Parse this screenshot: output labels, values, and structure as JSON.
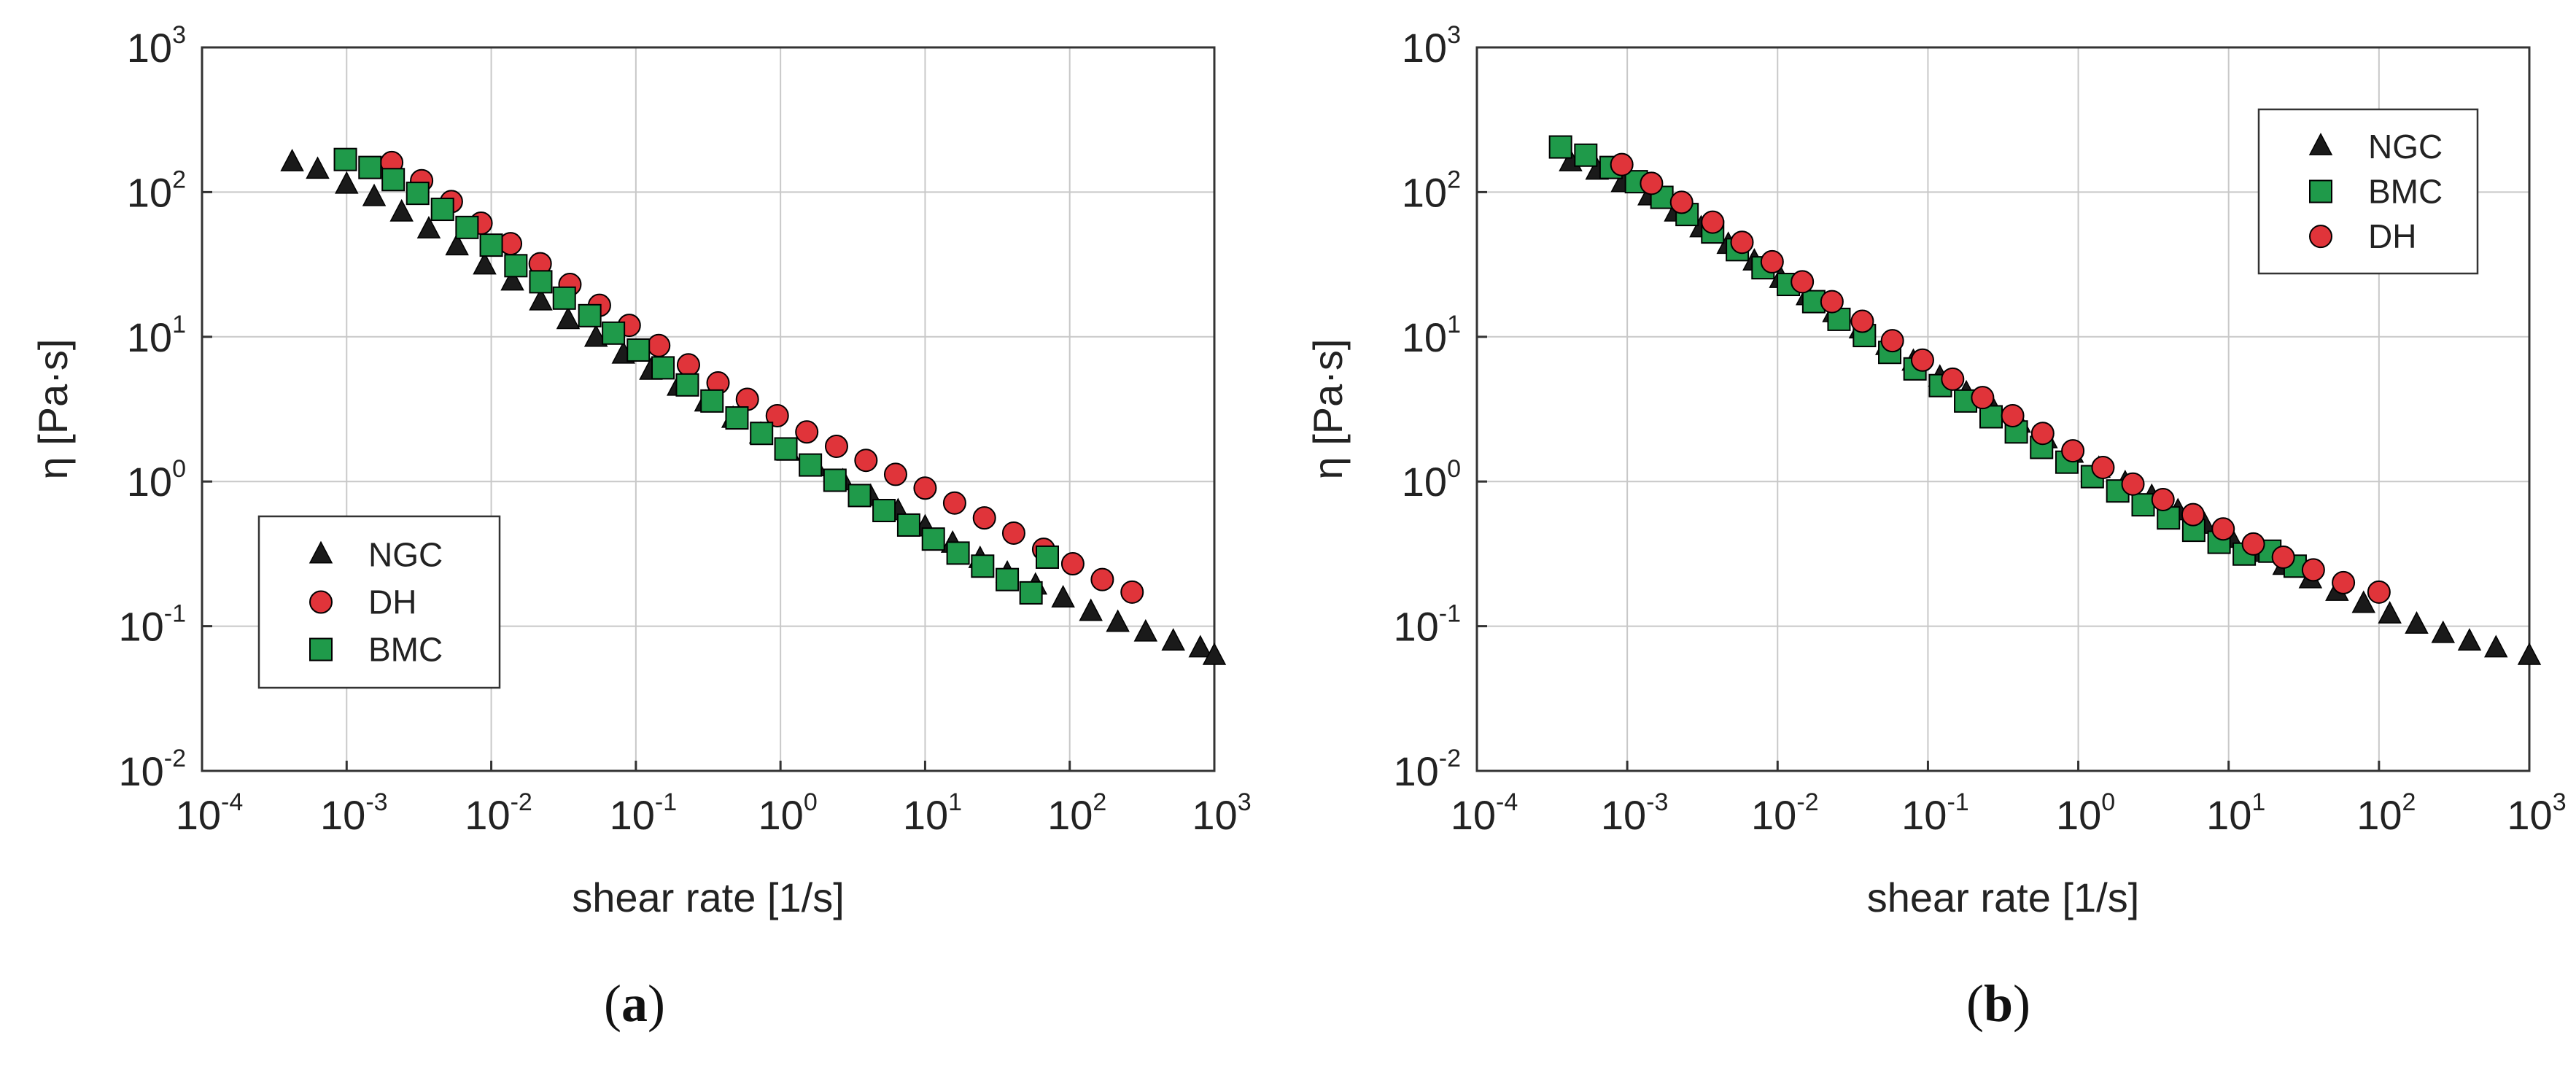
{
  "chart_data": [
    {
      "type": "scatter",
      "panel_label": "a",
      "xlabel": "shear rate [1/s]",
      "ylabel": "η [Pa·s]",
      "xscale": "log",
      "yscale": "log",
      "xlim": [
        0.0001,
        1000
      ],
      "ylim": [
        0.01,
        1000
      ],
      "xticks": [
        {
          "base": "10",
          "exp": "-4"
        },
        {
          "base": "10",
          "exp": "-3"
        },
        {
          "base": "10",
          "exp": "-2"
        },
        {
          "base": "10",
          "exp": "-1"
        },
        {
          "base": "10",
          "exp": "0"
        },
        {
          "base": "10",
          "exp": "1"
        },
        {
          "base": "10",
          "exp": "2"
        },
        {
          "base": "10",
          "exp": "3"
        }
      ],
      "yticks": [
        {
          "base": "10",
          "exp": "-2"
        },
        {
          "base": "10",
          "exp": "-1"
        },
        {
          "base": "10",
          "exp": "0"
        },
        {
          "base": "10",
          "exp": "1"
        },
        {
          "base": "10",
          "exp": "2"
        },
        {
          "base": "10",
          "exp": "3"
        }
      ],
      "grid": true,
      "legend_position": "middle-left",
      "series": [
        {
          "name": "NGC",
          "marker": "triangle",
          "color": "#1a1a1a",
          "x": [
            0.00042,
            0.00063,
            0.001,
            0.00155,
            0.0024,
            0.0037,
            0.0058,
            0.009,
            0.014,
            0.022,
            0.034,
            0.053,
            0.082,
            0.127,
            0.197,
            0.305,
            0.47,
            0.73,
            1.13,
            1.75,
            2.7,
            4.2,
            6.5,
            10,
            15.5,
            24,
            37,
            58,
            90,
            140,
            215,
            335,
            520,
            800,
            1000
          ],
          "y": [
            160,
            142,
            112,
            92,
            72,
            55,
            42,
            31,
            24,
            17.5,
            13,
            9.8,
            7.5,
            5.8,
            4.5,
            3.5,
            2.7,
            2.1,
            1.6,
            1.25,
            1.0,
            0.78,
            0.62,
            0.48,
            0.37,
            0.29,
            0.23,
            0.19,
            0.155,
            0.125,
            0.105,
            0.09,
            0.078,
            0.07,
            0.062
          ]
        },
        {
          "name": "DH",
          "marker": "circle",
          "color": "#e0343a",
          "x": [
            0.00205,
            0.0033,
            0.0053,
            0.0085,
            0.0136,
            0.0218,
            0.035,
            0.056,
            0.09,
            0.144,
            0.231,
            0.37,
            0.59,
            0.95,
            1.52,
            2.44,
            3.9,
            6.25,
            10,
            16,
            25.7,
            41,
            66,
            105,
            168,
            270
          ],
          "y": [
            160,
            120,
            86,
            61,
            44,
            32,
            23,
            16.5,
            12,
            8.7,
            6.4,
            4.8,
            3.7,
            2.85,
            2.2,
            1.75,
            1.4,
            1.12,
            0.9,
            0.71,
            0.56,
            0.44,
            0.34,
            0.27,
            0.21,
            0.172
          ]
        },
        {
          "name": "BMC",
          "marker": "square",
          "color": "#1f9a4a",
          "x": [
            0.00098,
            0.00145,
            0.0021,
            0.0031,
            0.0046,
            0.0068,
            0.01,
            0.0148,
            0.022,
            0.032,
            0.048,
            0.07,
            0.104,
            0.154,
            0.227,
            0.336,
            0.5,
            0.74,
            1.09,
            1.61,
            2.38,
            3.52,
            5.2,
            7.7,
            11.4,
            16.9,
            25,
            37,
            54,
            70
          ],
          "y": [
            168,
            148,
            122,
            98,
            76,
            57,
            43,
            31,
            24,
            18.5,
            14,
            10.6,
            8.1,
            6.1,
            4.65,
            3.6,
            2.75,
            2.15,
            1.68,
            1.3,
            1.02,
            0.8,
            0.63,
            0.5,
            0.4,
            0.32,
            0.26,
            0.21,
            0.17,
            0.3
          ]
        }
      ]
    },
    {
      "type": "scatter",
      "panel_label": "b",
      "xlabel": "shear rate [1/s]",
      "ylabel": "η [Pa·s]",
      "xscale": "log",
      "yscale": "log",
      "xlim": [
        0.0001,
        1000
      ],
      "ylim": [
        0.01,
        1000
      ],
      "xticks": [
        {
          "base": "10",
          "exp": "-4"
        },
        {
          "base": "10",
          "exp": "-3"
        },
        {
          "base": "10",
          "exp": "-2"
        },
        {
          "base": "10",
          "exp": "-1"
        },
        {
          "base": "10",
          "exp": "0"
        },
        {
          "base": "10",
          "exp": "1"
        },
        {
          "base": "10",
          "exp": "2"
        },
        {
          "base": "10",
          "exp": "3"
        }
      ],
      "yticks": [
        {
          "base": "10",
          "exp": "-2"
        },
        {
          "base": "10",
          "exp": "-1"
        },
        {
          "base": "10",
          "exp": "0"
        },
        {
          "base": "10",
          "exp": "1"
        },
        {
          "base": "10",
          "exp": "2"
        },
        {
          "base": "10",
          "exp": "3"
        }
      ],
      "grid": true,
      "legend_position": "top-right",
      "series": [
        {
          "name": "NGC",
          "marker": "triangle",
          "color": "#1a1a1a",
          "x": [
            0.00042,
            0.00063,
            0.00093,
            0.0014,
            0.0021,
            0.0031,
            0.0047,
            0.007,
            0.0105,
            0.0158,
            0.0237,
            0.0356,
            0.0534,
            0.08,
            0.12,
            0.18,
            0.27,
            0.405,
            0.61,
            0.91,
            1.37,
            2.05,
            3.08,
            4.6,
            6.9,
            10.4,
            15.6,
            23.4,
            35,
            52.6,
            79,
            118,
            178,
            267,
            400,
            600,
            1000
          ],
          "y": [
            160,
            140,
            115,
            93,
            72,
            56,
            43,
            33,
            25,
            19,
            14.5,
            11.2,
            8.6,
            6.7,
            5.2,
            4.05,
            3.15,
            2.5,
            1.95,
            1.55,
            1.22,
            0.97,
            0.78,
            0.62,
            0.5,
            0.4,
            0.32,
            0.26,
            0.21,
            0.172,
            0.142,
            0.12,
            0.102,
            0.088,
            0.078,
            0.07,
            0.062
          ]
        },
        {
          "name": "BMC",
          "marker": "square",
          "color": "#1f9a4a",
          "x": [
            0.00036,
            0.00053,
            0.00078,
            0.00115,
            0.0017,
            0.0025,
            0.0037,
            0.0054,
            0.008,
            0.0118,
            0.0174,
            0.0256,
            0.0378,
            0.0557,
            0.082,
            0.121,
            0.178,
            0.263,
            0.387,
            0.57,
            0.84,
            1.24,
            1.83,
            2.7,
            3.98,
            5.86,
            8.64,
            12.7,
            18.8,
            27.7
          ],
          "y": [
            205,
            180,
            148,
            118,
            92,
            70,
            53,
            40,
            30,
            23,
            17.5,
            13.2,
            10.2,
            7.8,
            6.0,
            4.6,
            3.6,
            2.8,
            2.2,
            1.72,
            1.36,
            1.08,
            0.86,
            0.69,
            0.56,
            0.46,
            0.38,
            0.315,
            0.33,
            0.26
          ]
        },
        {
          "name": "DH",
          "marker": "circle",
          "color": "#e0343a",
          "x": [
            0.00092,
            0.00145,
            0.0023,
            0.0037,
            0.0058,
            0.0092,
            0.0146,
            0.023,
            0.0366,
            0.058,
            0.092,
            0.146,
            0.231,
            0.366,
            0.58,
            0.92,
            1.46,
            2.31,
            3.66,
            5.8,
            9.2,
            14.6,
            23.1,
            36.6,
            58,
            100
          ],
          "y": [
            155,
            115,
            85,
            62,
            45,
            33,
            24,
            17.5,
            12.8,
            9.4,
            6.9,
            5.1,
            3.8,
            2.85,
            2.15,
            1.63,
            1.25,
            0.96,
            0.75,
            0.59,
            0.47,
            0.37,
            0.3,
            0.245,
            0.2,
            0.172
          ]
        }
      ]
    }
  ]
}
